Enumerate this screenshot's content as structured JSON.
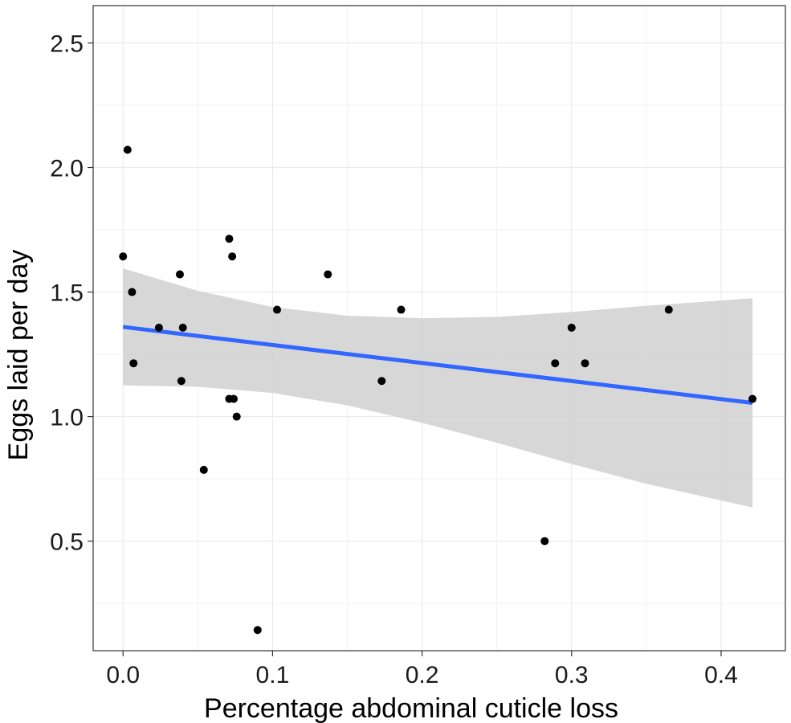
{
  "chart_data": {
    "type": "scatter",
    "title": "",
    "xlabel": "Percentage abdominal cuticle loss",
    "ylabel": "Eggs laid per day",
    "xlim": [
      -0.02,
      0.443
    ],
    "ylim": [
      0.06,
      2.65
    ],
    "x_ticks": [
      0.0,
      0.1,
      0.2,
      0.3,
      0.4
    ],
    "x_tick_labels": [
      "0.0",
      "0.1",
      "0.2",
      "0.3",
      "0.4"
    ],
    "y_ticks": [
      0.5,
      1.0,
      1.5,
      2.0,
      2.5
    ],
    "y_tick_labels": [
      "0.5",
      "1.0",
      "1.5",
      "2.0",
      "2.5"
    ],
    "grid": true,
    "points": [
      {
        "x": 0.0,
        "y": 1.643
      },
      {
        "x": 0.003,
        "y": 2.071
      },
      {
        "x": 0.006,
        "y": 1.5
      },
      {
        "x": 0.007,
        "y": 1.214
      },
      {
        "x": 0.024,
        "y": 1.357
      },
      {
        "x": 0.038,
        "y": 1.571
      },
      {
        "x": 0.039,
        "y": 1.143
      },
      {
        "x": 0.04,
        "y": 1.357
      },
      {
        "x": 0.054,
        "y": 0.786
      },
      {
        "x": 0.071,
        "y": 1.714
      },
      {
        "x": 0.071,
        "y": 1.071
      },
      {
        "x": 0.073,
        "y": 1.643
      },
      {
        "x": 0.074,
        "y": 1.071
      },
      {
        "x": 0.076,
        "y": 1.0
      },
      {
        "x": 0.09,
        "y": 0.143
      },
      {
        "x": 0.103,
        "y": 1.429
      },
      {
        "x": 0.137,
        "y": 1.571
      },
      {
        "x": 0.173,
        "y": 1.143
      },
      {
        "x": 0.186,
        "y": 1.429
      },
      {
        "x": 0.282,
        "y": 0.5
      },
      {
        "x": 0.289,
        "y": 1.214
      },
      {
        "x": 0.3,
        "y": 1.357
      },
      {
        "x": 0.309,
        "y": 1.214
      },
      {
        "x": 0.365,
        "y": 1.429
      },
      {
        "x": 0.421,
        "y": 1.071
      }
    ],
    "fit_line": {
      "method": "linear",
      "color": "#3366FF",
      "x": [
        0.0,
        0.421
      ],
      "y": [
        1.36,
        1.055
      ]
    },
    "confidence_band": {
      "color": "#d3d3d3",
      "x": [
        0.0,
        0.05,
        0.1,
        0.15,
        0.2,
        0.25,
        0.3,
        0.35,
        0.421
      ],
      "lower": [
        1.125,
        1.12,
        1.095,
        1.045,
        0.975,
        0.895,
        0.81,
        0.73,
        0.635
      ],
      "upper": [
        1.595,
        1.505,
        1.44,
        1.405,
        1.395,
        1.4,
        1.42,
        1.445,
        1.475
      ]
    },
    "point_color": "#000000"
  }
}
